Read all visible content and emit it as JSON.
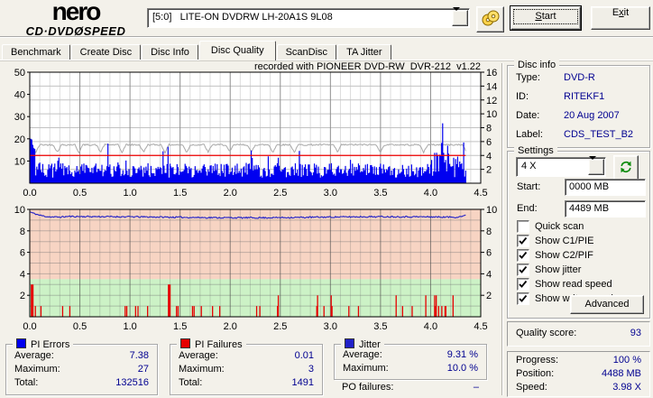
{
  "toolbar": {
    "logo_line1": "nero",
    "logo_line2": "CD·DVDØSPEED",
    "drive_select": "[5:0]   LITE-ON DVDRW LH-20A1S 9L08",
    "disc_button_icon": "dual-disc-icon",
    "start_label": "&Start",
    "exit_label": "E&xit"
  },
  "tabs": [
    {
      "label": "Benchmark",
      "active": false
    },
    {
      "label": "Create Disc",
      "active": false
    },
    {
      "label": "Disc Info",
      "active": false
    },
    {
      "label": "Disc Quality",
      "active": true
    },
    {
      "label": "ScanDisc",
      "active": false
    },
    {
      "label": "TA Jitter",
      "active": false
    }
  ],
  "chart_title": "recorded with PIONEER DVD-RW  DVR-212  v1.22",
  "disc_info": {
    "legend": "Disc info",
    "rows": [
      {
        "label": "Type:",
        "value": "DVD-R"
      },
      {
        "label": "ID:",
        "value": "RITEKF1"
      },
      {
        "label": "Date:",
        "value": "20 Aug 2007"
      },
      {
        "label": "Label:",
        "value": "CDS_TEST_B2"
      }
    ]
  },
  "settings": {
    "legend": "Settings",
    "speed_value": "4 X",
    "refresh_icon": "refresh-icon",
    "start_label": "Start:",
    "start_value": "0000 MB",
    "end_label": "End:",
    "end_value": "4489 MB",
    "checkboxes": [
      {
        "label": "Quick scan",
        "checked": false
      },
      {
        "label": "Show C1/PIE",
        "checked": true
      },
      {
        "label": "Show C2/PIF",
        "checked": true
      },
      {
        "label": "Show jitter",
        "checked": true
      },
      {
        "label": "Show read speed",
        "checked": true
      },
      {
        "label": "Show write speed",
        "checked": true
      }
    ],
    "advanced_label": "Advanced"
  },
  "quality": {
    "label": "Quality score:",
    "value": "93"
  },
  "progress_panel": {
    "rows": [
      {
        "label": "Progress:",
        "value": "100 %"
      },
      {
        "label": "Position:",
        "value": "4488 MB"
      },
      {
        "label": "Speed:",
        "value": "3.98 X"
      }
    ]
  },
  "stats": {
    "pi_errors": {
      "legend": "PI Errors",
      "chip_color": "#0000f0",
      "rows": [
        {
          "label": "Average:",
          "value": "7.38"
        },
        {
          "label": "Maximum:",
          "value": "27"
        },
        {
          "label": "Total:",
          "value": "132516"
        }
      ]
    },
    "pi_failures": {
      "legend": "PI Failures",
      "chip_color": "#e60000",
      "rows": [
        {
          "label": "Average:",
          "value": "0.01"
        },
        {
          "label": "Maximum:",
          "value": "3"
        },
        {
          "label": "Total:",
          "value": "1491"
        }
      ]
    },
    "jitter": {
      "legend": "Jitter",
      "chip_color": "#2121c8",
      "rows": [
        {
          "label": "Average:",
          "value": "9.31 %"
        },
        {
          "label": "Maximum:",
          "value": "10.0 %"
        }
      ]
    },
    "po_failures": {
      "label": "PO failures:",
      "value": "–"
    }
  },
  "chart_data": [
    {
      "id": "pi-error-scan",
      "type": "bar",
      "x_unit": "GB",
      "xlim": [
        0,
        4.5
      ],
      "x_tick_labels": [
        "0.0",
        "0.5",
        "1.0",
        "1.5",
        "2.0",
        "2.5",
        "3.0",
        "3.5",
        "4.0",
        "4.5"
      ],
      "ylim_left": [
        0,
        50
      ],
      "y_left_labels": [
        50,
        40,
        30,
        20,
        10
      ],
      "ylim_right": [
        0,
        16
      ],
      "y_right_labels": [
        16,
        14,
        12,
        10,
        8,
        6,
        4,
        2
      ],
      "grid": true,
      "series": [
        {
          "name": "pi_errors",
          "style": "bars",
          "color": "#0000f0",
          "average": 7.38,
          "maximum": 27,
          "total": 132516,
          "x_end": 4.35,
          "seed": 7,
          "note": "dense noise ~3-11 with spike clusters at 0.0 GB (to 20) and 4.0-4.3 GB (to 27)"
        },
        {
          "name": "write_speed",
          "style": "hline",
          "color": "#f00000",
          "value_right_axis": 4.0,
          "x_end": 4.35
        },
        {
          "name": "read_speed",
          "style": "line",
          "color": "#a9a9a9",
          "base_left_axis": 17.3,
          "dip_left_axis": 13.9,
          "dip_interval_gb": 0.215,
          "x_end": 4.35,
          "seed": 42
        }
      ]
    },
    {
      "id": "jitter-pif-scan",
      "type": "line+bar",
      "x_unit": "GB",
      "xlim": [
        0,
        4.5
      ],
      "x_tick_labels": [
        "0.0",
        "0.5",
        "1.0",
        "1.5",
        "2.0",
        "2.5",
        "3.0",
        "3.5",
        "4.0",
        "4.5"
      ],
      "ylim": [
        0,
        10
      ],
      "y_labels": [
        10,
        8,
        6,
        4,
        2
      ],
      "zone_boundary": 3.5,
      "zone_top_color": "#f7d4c3",
      "zone_bottom_color": "#ccf2c6",
      "series": [
        {
          "name": "jitter",
          "style": "line",
          "color": "#2121c8",
          "average": 9.31,
          "maximum": 10.0,
          "start_value": 9.78,
          "end_value": 9.45,
          "x_end": 4.35,
          "seed": 11
        },
        {
          "name": "pi_failures",
          "style": "spikes",
          "color": "#e60000",
          "average": 0.01,
          "maximum": 3,
          "total": 1491,
          "x_end": 4.38,
          "seed": 5,
          "cluster_centers": [
            0.02,
            1.39,
            1.48,
            2.87,
            3.65,
            3.72,
            3.95,
            4.05,
            4.22
          ]
        }
      ]
    }
  ]
}
